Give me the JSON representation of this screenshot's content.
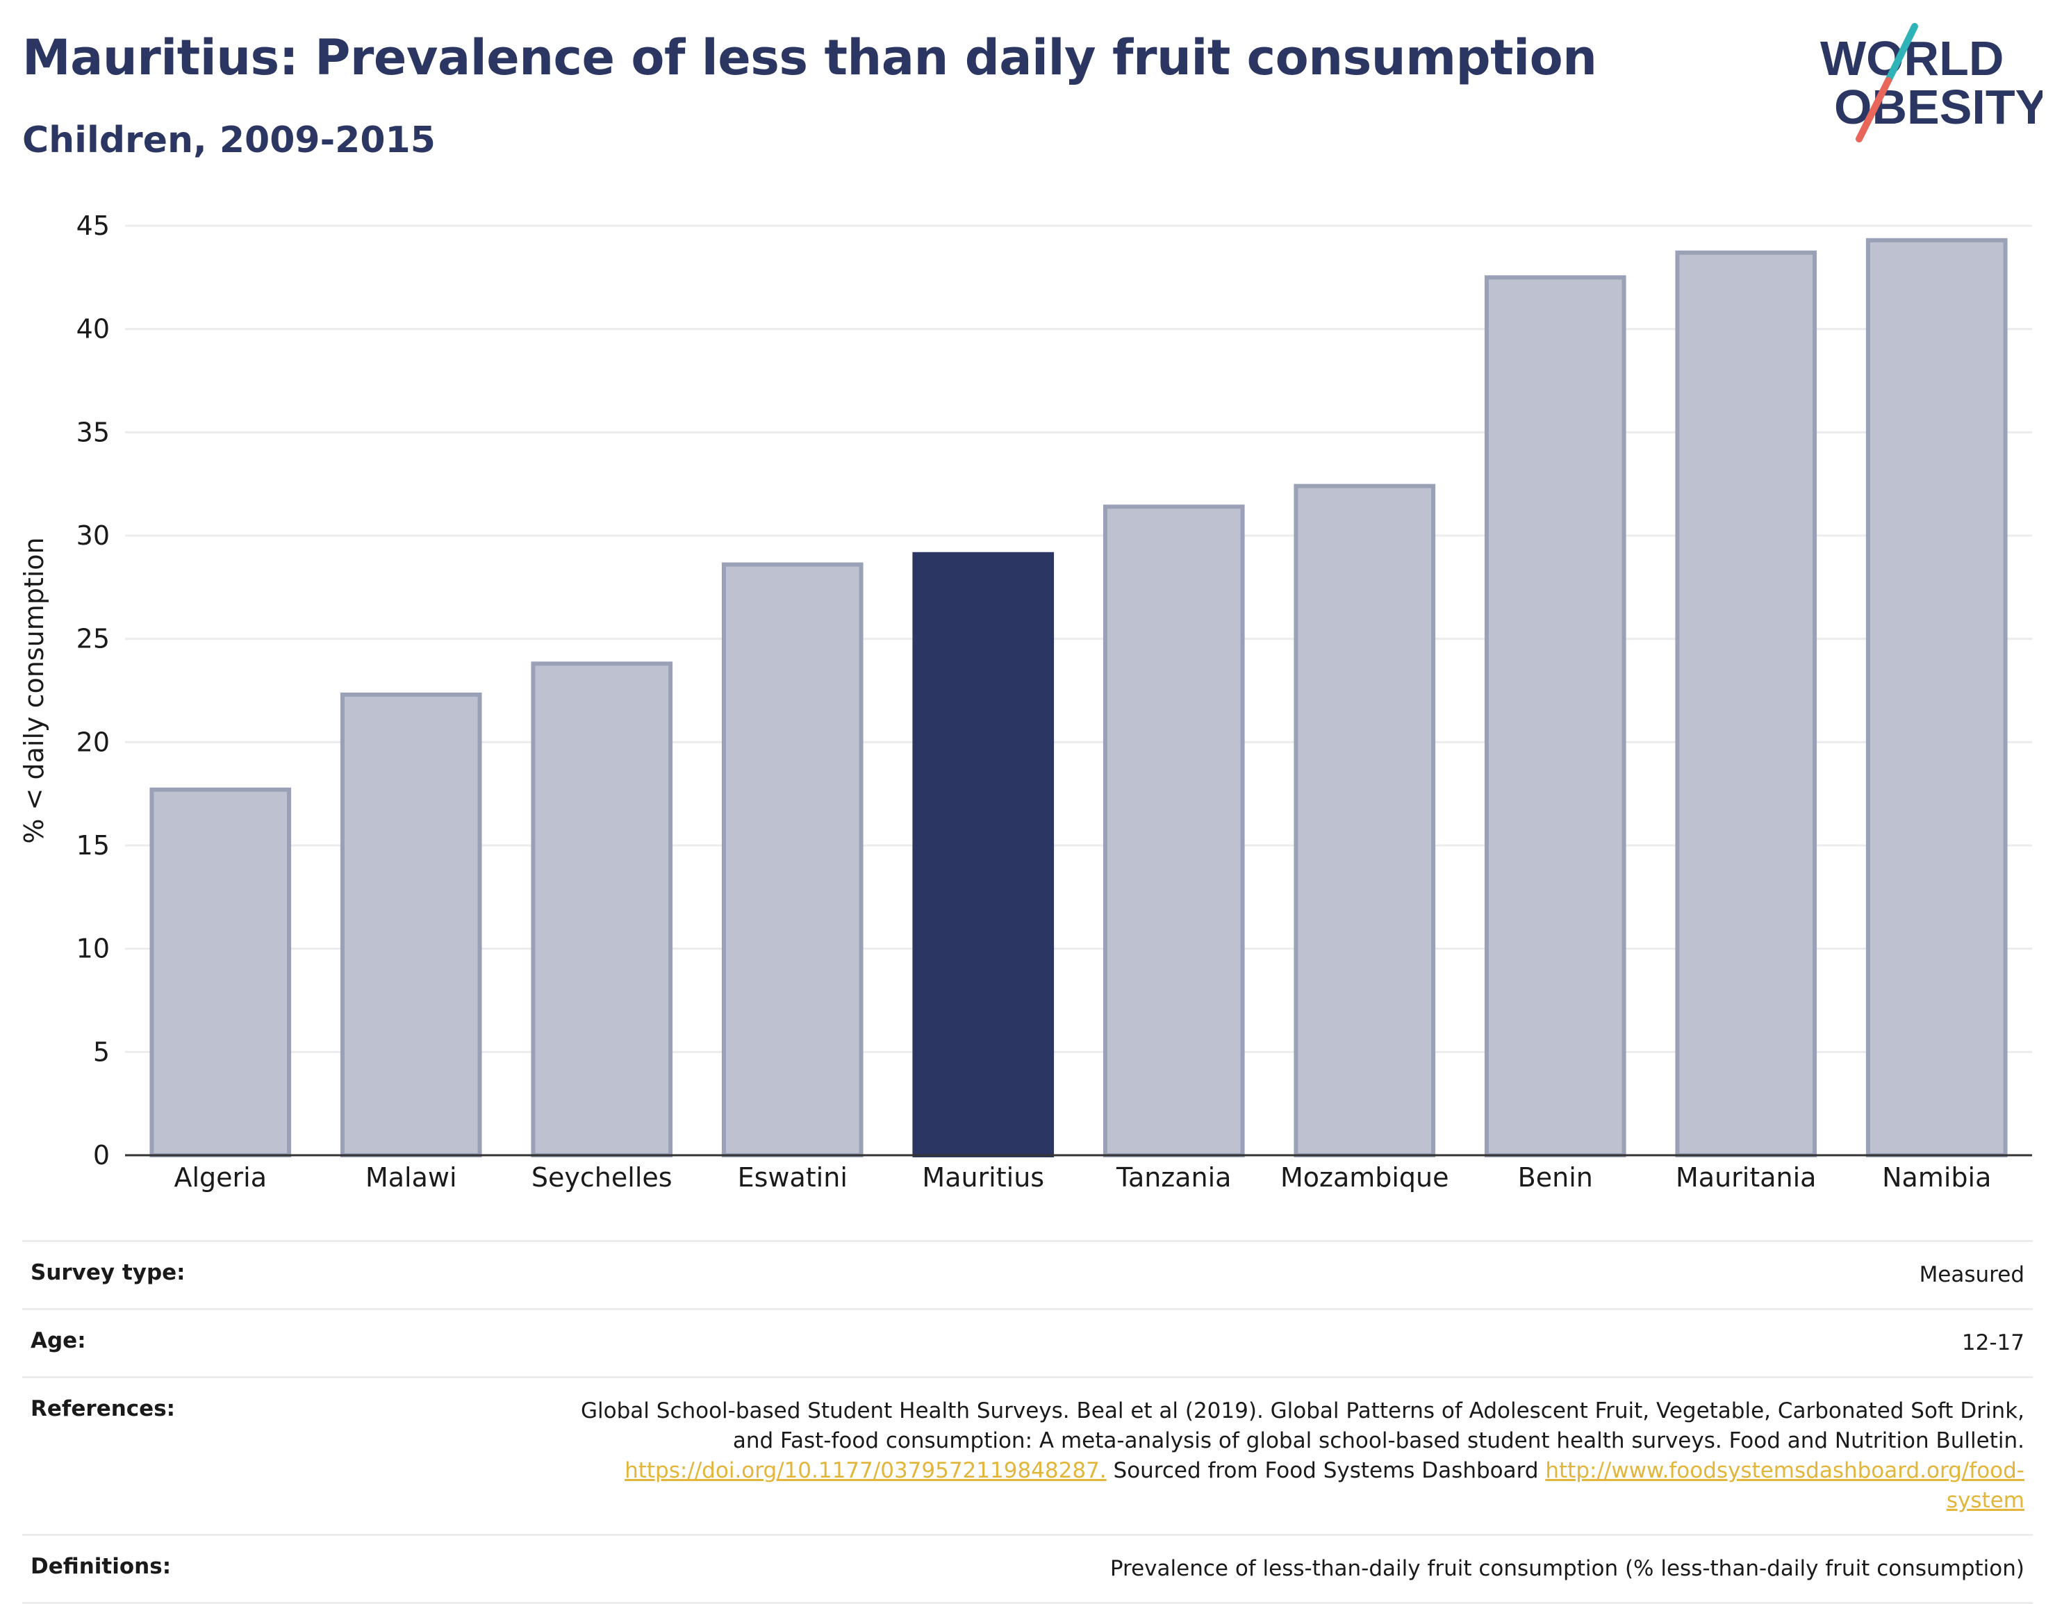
{
  "header": {
    "title": "Mauritius: Prevalence of less than daily fruit consumption",
    "subtitle": "Children, 2009-2015"
  },
  "logo": {
    "line1": "WORLD",
    "line2": "OBESITY",
    "colors": {
      "text": "#2b3762",
      "slash_top": "#2fb3b9",
      "slash_bottom": "#e8665a"
    }
  },
  "colors": {
    "highlight": "#2b3762",
    "bar_fill": "#bec1cf",
    "bar_stroke": "#9aa0b6",
    "grid": "#ececec",
    "axis": "#333333"
  },
  "chart_data": {
    "type": "bar",
    "title": "Mauritius: Prevalence of less than daily fruit consumption",
    "subtitle": "Children, 2009-2015",
    "ylabel": "% < daily consumption",
    "xlabel": "",
    "ylim": [
      0,
      45
    ],
    "yticks": [
      0,
      5,
      10,
      15,
      20,
      25,
      30,
      35,
      40,
      45
    ],
    "grid": true,
    "highlight": "Mauritius",
    "categories": [
      "Algeria",
      "Malawi",
      "Seychelles",
      "Eswatini",
      "Mauritius",
      "Tanzania",
      "Mozambique",
      "Benin",
      "Mauritania",
      "Namibia"
    ],
    "values": [
      17.7,
      22.3,
      23.8,
      28.6,
      29.1,
      31.4,
      32.4,
      42.5,
      43.7,
      44.3
    ]
  },
  "info": {
    "survey_type": {
      "label": "Survey type:",
      "value": "Measured"
    },
    "age": {
      "label": "Age:",
      "value": "12-17"
    },
    "references": {
      "label": "References:",
      "text1": "Global School-based Student Health Surveys. Beal et al (2019). Global Patterns of Adolescent Fruit, Vegetable, Carbonated Soft Drink, and Fast-food consumption: A meta-analysis of global school-based student health surveys. Food and Nutrition Bulletin.",
      "link1": "https://doi.org/10.1177/0379572119848287.",
      "text2": "Sourced from Food Systems Dashboard",
      "link2": "http://www.foodsystemsdashboard.org/food-system"
    },
    "definitions": {
      "label": "Definitions:",
      "value": "Prevalence of less-than-daily fruit consumption (% less-than-daily fruit consumption)"
    }
  }
}
